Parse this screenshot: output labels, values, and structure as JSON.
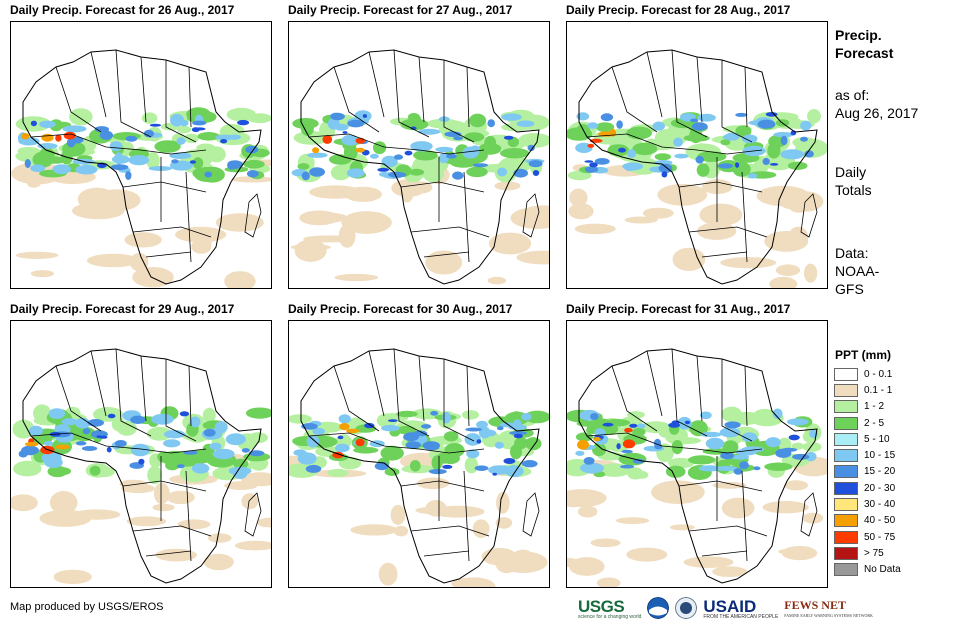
{
  "panels": [
    {
      "title": "Daily Precip. Forecast for 26 Aug., 2017",
      "date": "26 Aug., 2017"
    },
    {
      "title": "Daily Precip. Forecast for 27 Aug., 2017",
      "date": "27 Aug., 2017"
    },
    {
      "title": "Daily Precip. Forecast for 28 Aug., 2017",
      "date": "28 Aug., 2017"
    },
    {
      "title": "Daily Precip. Forecast for 29 Aug., 2017",
      "date": "29 Aug., 2017"
    },
    {
      "title": "Daily Precip. Forecast for 30 Aug., 2017",
      "date": "30 Aug., 2017"
    },
    {
      "title": "Daily Precip. Forecast for 31 Aug., 2017",
      "date": "31 Aug., 2017"
    }
  ],
  "sidebar": {
    "heading_line1": "Precip.",
    "heading_line2": "Forecast",
    "asof_label": "as of:",
    "asof_date": "Aug 26, 2017",
    "totals_line1": "Daily",
    "totals_line2": "Totals",
    "data_label": "Data:",
    "data_line1": "NOAA-",
    "data_line2": "GFS"
  },
  "legend": {
    "title": "PPT (mm)",
    "items": [
      {
        "label": "0 - 0.1",
        "color": "#ffffff"
      },
      {
        "label": "0.1 - 1",
        "color": "#f0dcbe"
      },
      {
        "label": "1 - 2",
        "color": "#b4f0a0"
      },
      {
        "label": "2 - 5",
        "color": "#6ed25a"
      },
      {
        "label": "5 - 10",
        "color": "#aaeef5"
      },
      {
        "label": "10 - 15",
        "color": "#7ec8f2"
      },
      {
        "label": "15 - 20",
        "color": "#4a90e2"
      },
      {
        "label": "20 - 30",
        "color": "#1e50dc"
      },
      {
        "label": "30 - 40",
        "color": "#ffe67a"
      },
      {
        "label": "40 - 50",
        "color": "#f5a000"
      },
      {
        "label": "50 - 75",
        "color": "#ff3c00"
      },
      {
        "label": "> 75",
        "color": "#b41414"
      },
      {
        "label": "No Data",
        "color": "#999999"
      }
    ]
  },
  "footer": {
    "credit": "Map produced by USGS/EROS",
    "logos": {
      "usgs": "USGS",
      "usgs_tagline": "science for a changing world",
      "usaid": "USAID",
      "usaid_tagline": "FROM THE AMERICAN PEOPLE",
      "fews": "FEWS NET",
      "fews_tagline": "FAMINE EARLY WARNING SYSTEMS NETWORK"
    }
  }
}
